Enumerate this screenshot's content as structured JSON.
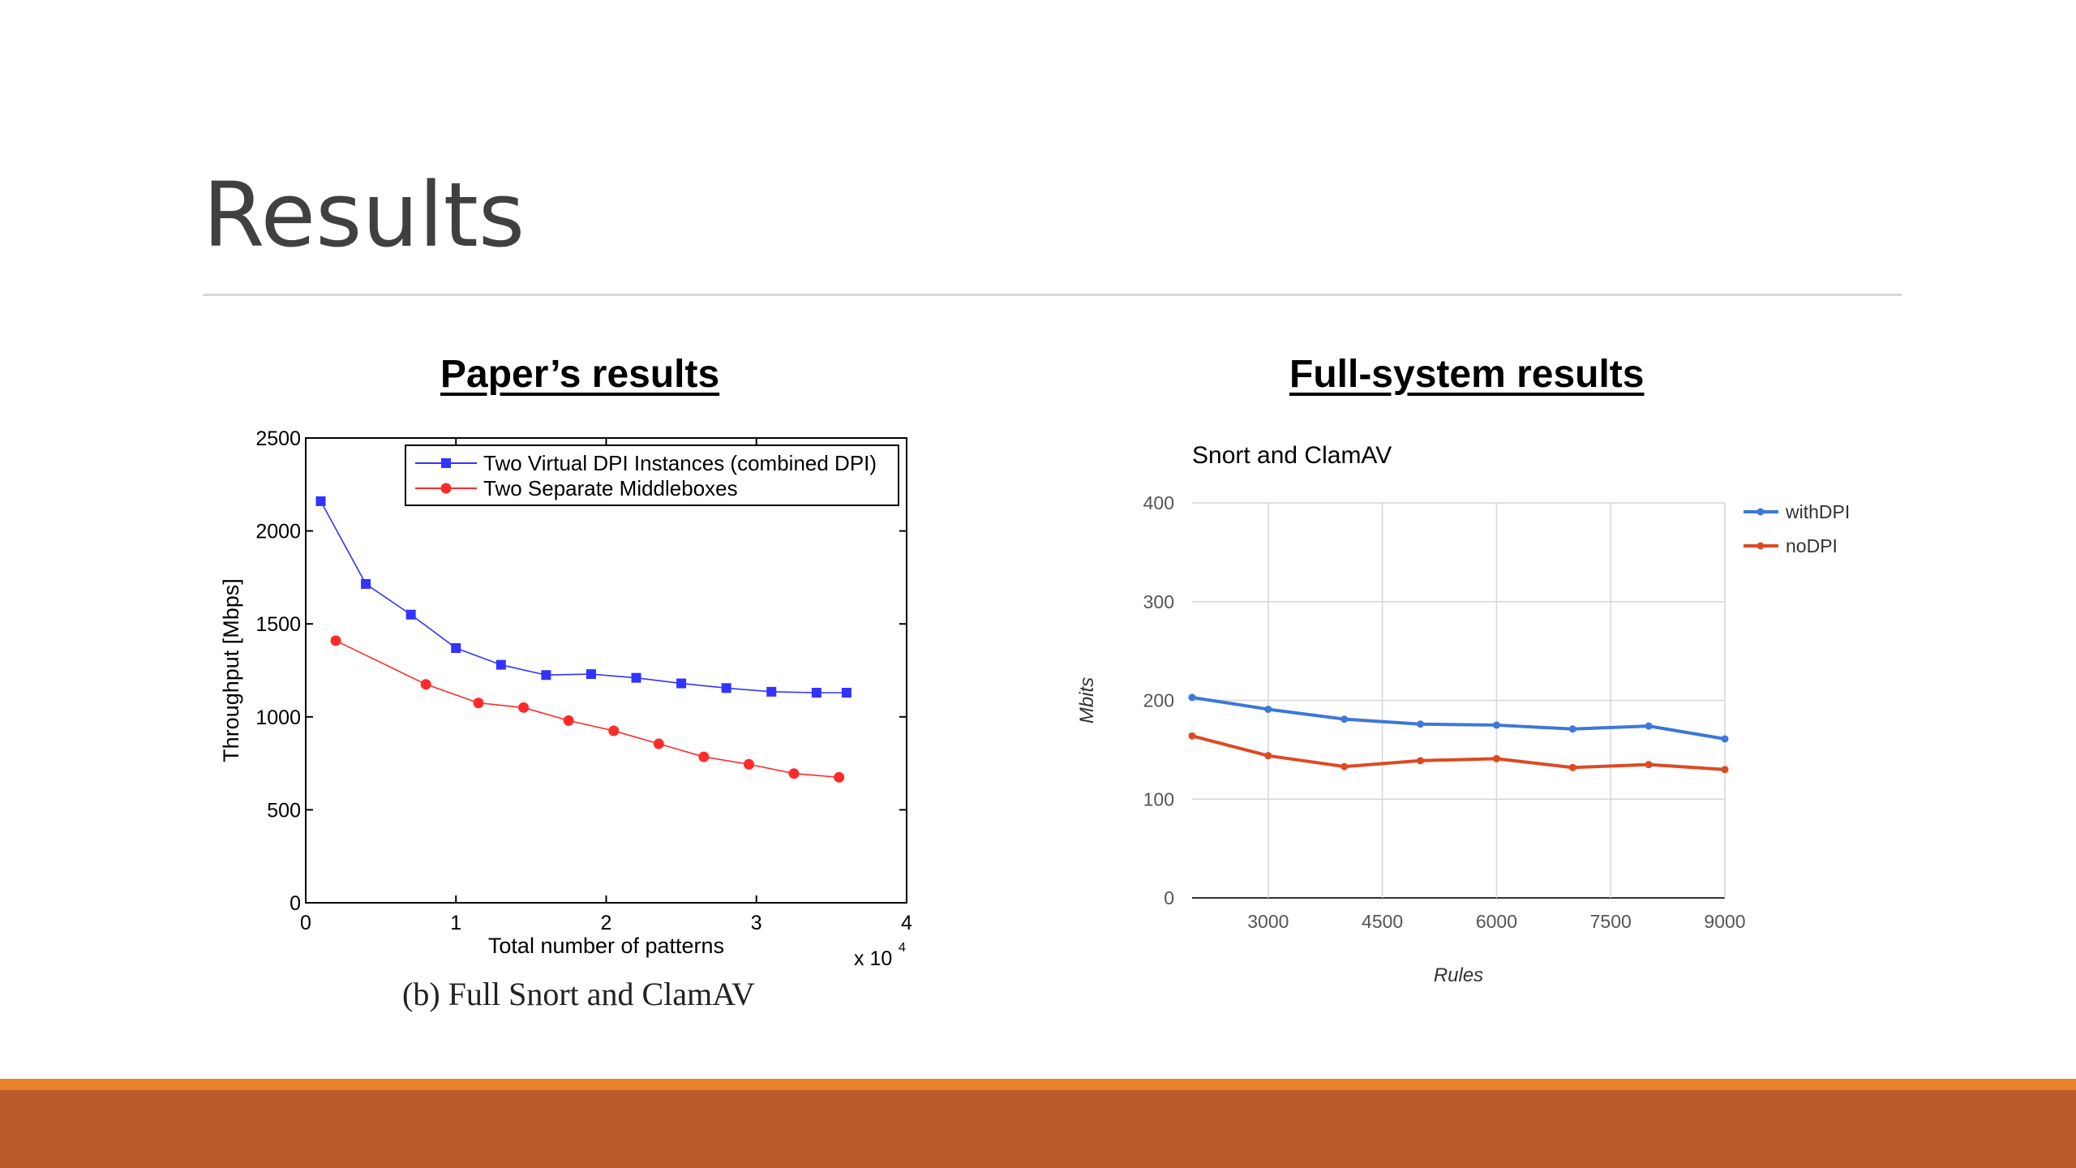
{
  "slide": {
    "title": "Results"
  },
  "headings": {
    "left": "Paper’s results",
    "right": "Full-system results"
  },
  "caption": "(b) Full Snort and ClamAV",
  "colors": {
    "footer_accent": "#e8832a",
    "footer_band": "#bb5a2a",
    "left_series_blue": "#3333ff",
    "left_series_red": "#ff2a2a",
    "right_withDPI": "#3d78d8",
    "right_noDPI": "#dd4a22"
  },
  "chart_data": [
    {
      "type": "line",
      "xlabel": "Total number of patterns",
      "ylabel": "Throughput [Mbps]",
      "x_multiplier": "x 10",
      "x_multiplier_exp": "4",
      "xlim": [
        0,
        4
      ],
      "ylim": [
        0,
        2500
      ],
      "xticks": [
        0,
        1,
        2,
        3,
        4
      ],
      "yticks": [
        0,
        500,
        1000,
        1500,
        2000,
        2500
      ],
      "grid": false,
      "legend": "top-right",
      "series": [
        {
          "name": "Two Virtual DPI Instances (combined DPI)",
          "marker": "square",
          "color": "#3333ff",
          "points": [
            [
              0.1,
              2160
            ],
            [
              0.4,
              1715
            ],
            [
              0.7,
              1550
            ],
            [
              1.0,
              1370
            ],
            [
              1.3,
              1280
            ],
            [
              1.6,
              1225
            ],
            [
              1.9,
              1230
            ],
            [
              2.2,
              1210
            ],
            [
              2.5,
              1180
            ],
            [
              2.8,
              1155
            ],
            [
              3.1,
              1135
            ],
            [
              3.4,
              1130
            ],
            [
              3.6,
              1130
            ]
          ]
        },
        {
          "name": "Two Separate Middleboxes",
          "marker": "circle",
          "color": "#ff2a2a",
          "points": [
            [
              0.2,
              1410
            ],
            [
              0.8,
              1175
            ],
            [
              1.15,
              1075
            ],
            [
              1.45,
              1050
            ],
            [
              1.75,
              980
            ],
            [
              2.05,
              925
            ],
            [
              2.35,
              855
            ],
            [
              2.65,
              785
            ],
            [
              2.95,
              745
            ],
            [
              3.25,
              695
            ],
            [
              3.55,
              675
            ]
          ]
        }
      ]
    },
    {
      "type": "line",
      "title": "Snort and ClamAV",
      "xlabel": "Rules",
      "ylabel": "Mbits",
      "xlim": [
        2000,
        9000
      ],
      "ylim": [
        0,
        400
      ],
      "xticks": [
        3000,
        4500,
        6000,
        7500,
        9000
      ],
      "yticks": [
        0,
        100,
        200,
        300,
        400
      ],
      "grid": true,
      "legend": "right",
      "series": [
        {
          "name": "withDPI",
          "color": "#3d78d8",
          "points": [
            [
              2000,
              203
            ],
            [
              3000,
              191
            ],
            [
              4000,
              181
            ],
            [
              5000,
              176
            ],
            [
              6000,
              175
            ],
            [
              7000,
              171
            ],
            [
              8000,
              174
            ],
            [
              9000,
              161
            ]
          ]
        },
        {
          "name": "noDPI",
          "color": "#dd4a22",
          "points": [
            [
              2000,
              164
            ],
            [
              3000,
              144
            ],
            [
              4000,
              133
            ],
            [
              5000,
              139
            ],
            [
              6000,
              141
            ],
            [
              7000,
              132
            ],
            [
              8000,
              135
            ],
            [
              9000,
              130
            ]
          ]
        }
      ]
    }
  ]
}
